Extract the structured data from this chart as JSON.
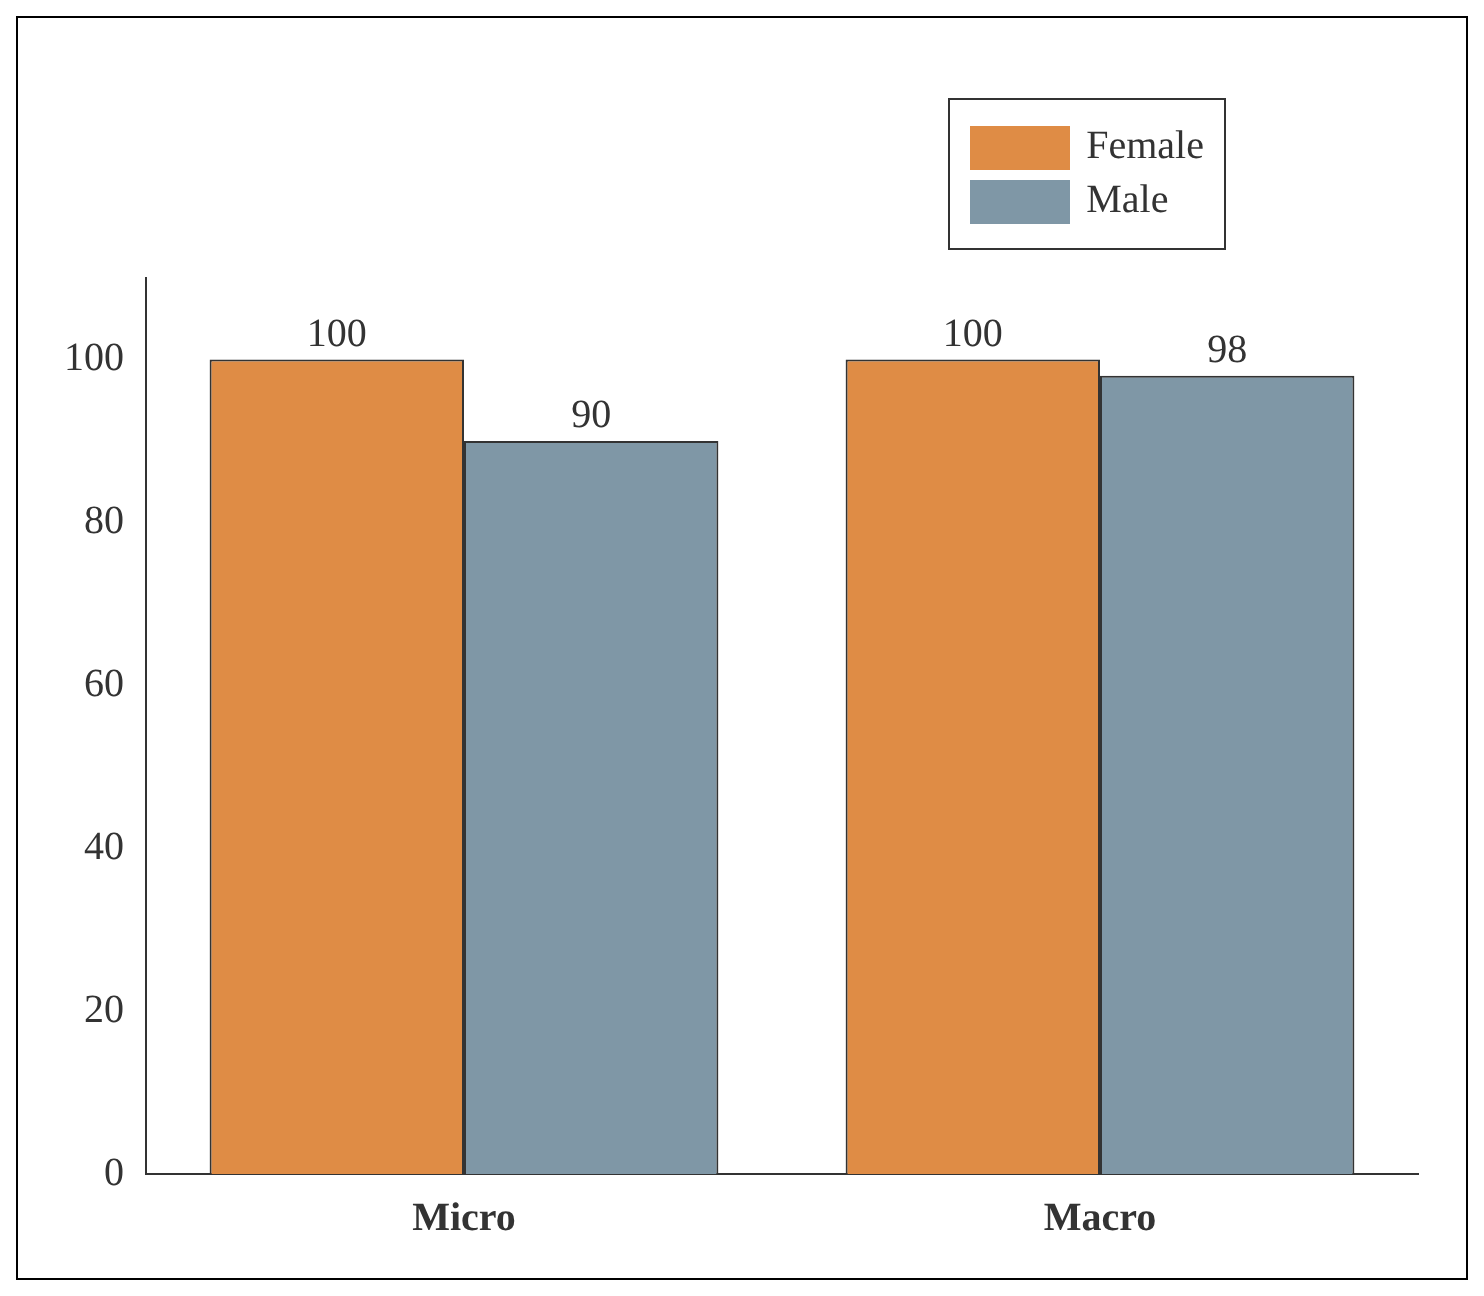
{
  "chart_data": {
    "type": "bar",
    "categories": [
      "Micro",
      "Macro"
    ],
    "series": [
      {
        "name": "Female",
        "color": "#df8c45",
        "values": [
          100,
          100
        ]
      },
      {
        "name": "Male",
        "color": "#7f97a6",
        "values": [
          90,
          98
        ]
      }
    ],
    "ylim": [
      0,
      110
    ],
    "yticks": [
      0,
      20,
      40,
      60,
      80,
      100
    ],
    "grid": false,
    "legend": "top right",
    "data_labels": true
  }
}
